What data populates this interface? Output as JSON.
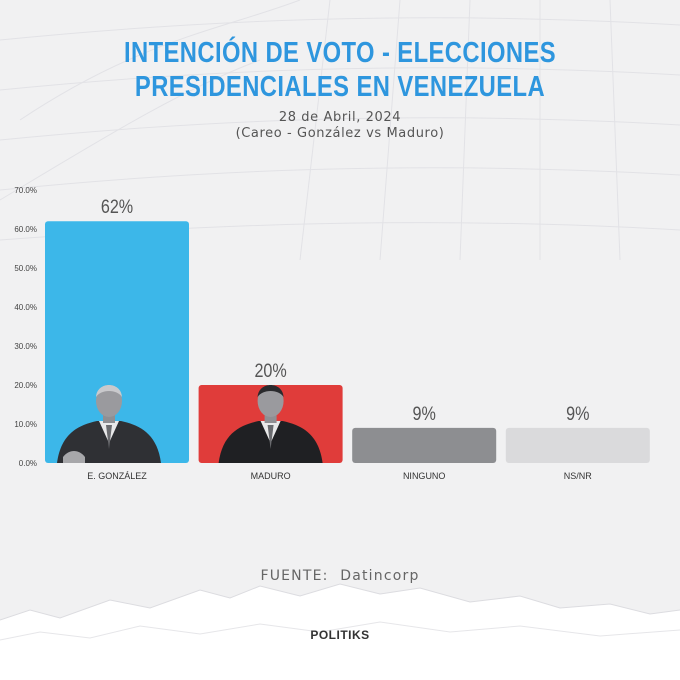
{
  "header": {
    "title_line1": "INTENCIÓN DE VOTO - ELECCIONES",
    "title_line2": "PRESIDENCIALES EN VENEZUELA",
    "date": "28 de Abril, 2024",
    "subtitle": "(Careo - González vs Maduro)"
  },
  "chart_data": {
    "type": "bar",
    "categories": [
      "E. GONZÁLEZ",
      "MADURO",
      "NINGUNO",
      "NS/NR"
    ],
    "values": [
      62,
      20,
      9,
      9
    ],
    "data_labels": [
      "62%",
      "20%",
      "9%",
      "9%"
    ],
    "colors": [
      "#3cb7e9",
      "#e03c3a",
      "#8d8e91",
      "#dadadc"
    ],
    "ylim": [
      0,
      70
    ],
    "yticks": [
      0,
      10,
      20,
      30,
      40,
      50,
      60,
      70
    ],
    "ytick_labels": [
      "0.0%",
      "10.0%",
      "20.0%",
      "30.0%",
      "40.0%",
      "50.0%",
      "60.0%",
      "70.0%"
    ],
    "grid": false,
    "legend": "none"
  },
  "footer": {
    "source_label": "FUENTE:",
    "source_value": "Datincorp",
    "brand": "POLITIKS"
  }
}
